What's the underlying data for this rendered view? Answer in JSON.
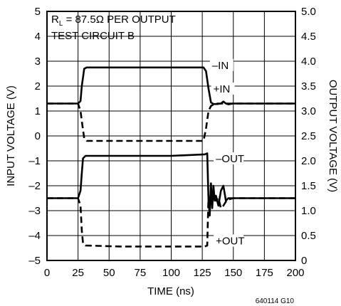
{
  "chart_data": {
    "type": "line",
    "title": "",
    "annotation_line1_prefix": "R",
    "annotation_line1_sub": "L",
    "annotation_line1_rest": " = 87.5Ω PER OUTPUT",
    "annotation_line2": "TEST CIRCUIT B",
    "figure_id": "640114 G10",
    "xlabel": "TIME (ns)",
    "ylabel_left": "INPUT VOLTAGE (V)",
    "ylabel_right": "OUTPUT VOLTAGE (V)",
    "xlim": [
      0,
      200
    ],
    "ylim_left": [
      -5,
      5
    ],
    "ylim_right": [
      0,
      5
    ],
    "x_ticks": [
      "0",
      "25",
      "50",
      "75",
      "100",
      "125",
      "150",
      "175",
      "200"
    ],
    "y_left_ticks": [
      "5",
      "4",
      "3",
      "2",
      "1",
      "0",
      "–1",
      "–2",
      "–3",
      "–4",
      "–5"
    ],
    "y_right_ticks": [
      "5.0",
      "4.5",
      "4.0",
      "3.5",
      "3.0",
      "2.5",
      "2.0",
      "1.5",
      "1.0",
      "0.5",
      "0"
    ],
    "grid": true,
    "series": [
      {
        "name": "–IN",
        "axis": "left",
        "style": "solid",
        "x": [
          0,
          25,
          27,
          28,
          30,
          32,
          60,
          100,
          126,
          128,
          130,
          132,
          134,
          137,
          140,
          142,
          144,
          146,
          150,
          200
        ],
        "y": [
          1.3,
          1.3,
          1.4,
          2.0,
          2.7,
          2.75,
          2.75,
          2.75,
          2.75,
          2.6,
          1.9,
          1.35,
          1.28,
          1.28,
          1.3,
          1.38,
          1.3,
          1.27,
          1.3,
          1.3
        ]
      },
      {
        "name": "+IN",
        "axis": "left",
        "style": "dashed",
        "x": [
          0,
          25,
          27,
          28,
          30,
          32,
          40,
          50,
          100,
          126,
          128,
          130,
          132,
          135,
          140,
          150,
          200
        ],
        "y": [
          1.3,
          1.3,
          1.0,
          0.6,
          -0.1,
          -0.2,
          -0.2,
          -0.2,
          -0.2,
          -0.2,
          0.3,
          1.0,
          1.2,
          1.3,
          1.3,
          1.3,
          1.3
        ]
      },
      {
        "name": "–OUT",
        "axis": "right",
        "style": "solid",
        "x": [
          0,
          25,
          27,
          28,
          29,
          31,
          60,
          100,
          127,
          129,
          130,
          131,
          132,
          133,
          134,
          135,
          136,
          138,
          140,
          142,
          144,
          146,
          150,
          200
        ],
        "y": [
          1.25,
          1.25,
          1.4,
          1.75,
          2.05,
          2.1,
          2.1,
          2.1,
          2.13,
          2.15,
          1.2,
          0.9,
          1.55,
          1.05,
          1.5,
          1.2,
          1.3,
          1.1,
          1.4,
          1.5,
          1.2,
          1.25,
          1.25,
          1.25
        ]
      },
      {
        "name": "+OUT",
        "axis": "right",
        "style": "dashed",
        "x": [
          0,
          25,
          27,
          28,
          29,
          31,
          60,
          100,
          127,
          129,
          130,
          131,
          132,
          133,
          134,
          136,
          138,
          140,
          142,
          145,
          150,
          200
        ],
        "y": [
          1.25,
          1.25,
          1.1,
          0.6,
          0.35,
          0.3,
          0.28,
          0.28,
          0.28,
          0.3,
          1.3,
          1.1,
          1.3,
          1.15,
          1.3,
          1.2,
          1.25,
          1.05,
          1.1,
          1.22,
          1.25,
          1.25
        ]
      }
    ],
    "series_labels": [
      {
        "text": "–IN",
        "x": 130,
        "y": 2.75,
        "axis": "left"
      },
      {
        "text": "+IN",
        "x": 131,
        "y": 1.8,
        "axis": "left"
      },
      {
        "text": "–OUT",
        "x": 133,
        "y": 2.0,
        "axis": "right"
      },
      {
        "text": "+OUT",
        "x": 133,
        "y": 0.35,
        "axis": "right"
      }
    ]
  }
}
